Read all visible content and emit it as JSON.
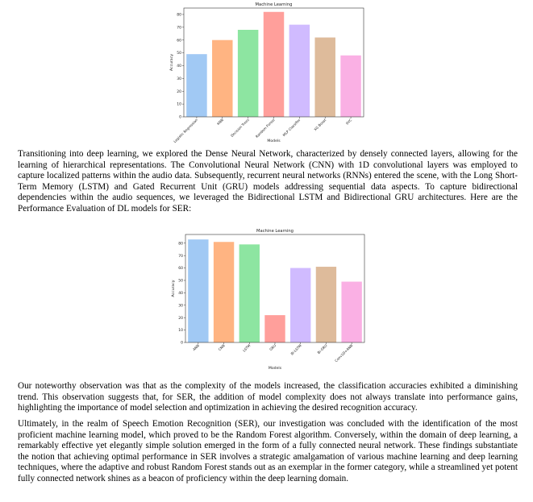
{
  "chart_data": [
    {
      "type": "bar",
      "title": "Machine Learning",
      "xlabel": "Models",
      "ylabel": "Accuracy",
      "categories": [
        "Logistic Regression",
        "KNN",
        "Decision Trees",
        "Random Forest",
        "MLP Classifier",
        "XG Boost",
        "SVC"
      ],
      "values": [
        49,
        60,
        68,
        82,
        72,
        62,
        48
      ],
      "colors": [
        "#a1c9f4",
        "#ffb482",
        "#8de5a1",
        "#ff9f9b",
        "#d0bbff",
        "#debb9b",
        "#fab0e4"
      ],
      "ylim": [
        0,
        85
      ],
      "yticks": [
        "0",
        "10",
        "20",
        "30",
        "40",
        "50",
        "60",
        "70",
        "80"
      ],
      "grid": false
    },
    {
      "type": "bar",
      "title": "Machine Learning",
      "xlabel": "Models",
      "ylabel": "Accuracy",
      "categories": [
        "ANN",
        "CNN",
        "LSTM",
        "GRU",
        "Bi-LSTM",
        "Bi-GRU",
        "Conv1D+ANN"
      ],
      "values": [
        83,
        81,
        79,
        22,
        60,
        61,
        49
      ],
      "colors": [
        "#a1c9f4",
        "#ffb482",
        "#8de5a1",
        "#ff9f9b",
        "#d0bbff",
        "#debb9b",
        "#fab0e4"
      ],
      "ylim": [
        0,
        87
      ],
      "yticks": [
        "0",
        "10",
        "20",
        "30",
        "40",
        "50",
        "60",
        "70",
        "80"
      ],
      "grid": false
    }
  ],
  "paragraphs": {
    "p1": "Transitioning into deep learning, we explored the Dense Neural Network, characterized by densely connected layers, allowing for the learning of hierarchical representations. The Convolutional Neural Network (CNN) with 1D convolutional layers was employed to capture localized patterns within the audio data. Subsequently, recurrent neural networks (RNNs) entered the scene, with the Long Short-Term Memory (LSTM) and Gated Recurrent Unit (GRU) models addressing sequential data aspects. To capture bidirectional dependencies within the audio sequences, we leveraged the Bidirectional LSTM and Bidirectional GRU architectures. Here are the Performance Evaluation of DL models for SER:",
    "p2": "Our noteworthy observation was that as the complexity of the models increased, the classification accuracies exhibited a diminishing trend. This observation suggests that, for SER, the addition of model complexity does not always translate into performance gains, highlighting the importance of model selection and optimization in achieving the desired recognition accuracy.",
    "p3": "Ultimately, in the realm of Speech Emotion Recognition (SER), our investigation was concluded with the identification of the most proficient machine learning model, which proved to be the Random Forest algorithm. Conversely, within the domain of deep learning, a remarkably effective yet elegantly simple solution emerged in the form of a fully connected neural network. These findings substantiate the notion that achieving optimal performance in SER involves a strategic amalgamation of various machine learning and deep learning techniques, where the adaptive and robust Random Forest stands out as an exemplar in the former category, while a streamlined yet potent fully connected network shines as a beacon of proficiency within the deep learning domain."
  }
}
